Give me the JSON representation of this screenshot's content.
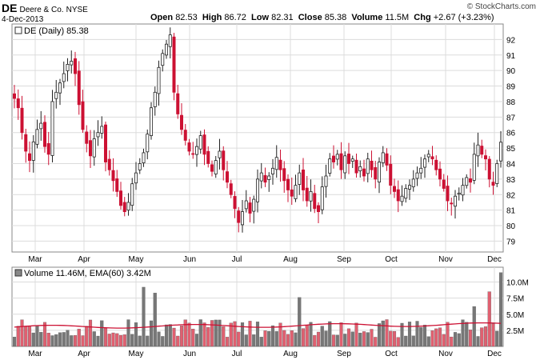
{
  "header": {
    "symbol": "DE",
    "company": "Deere & Co.",
    "exchange": "NYSE",
    "date": "4-Dec-2013",
    "brand": "© StockCharts.com",
    "open_label": "Open",
    "open": "82.53",
    "high_label": "High",
    "high": "86.72",
    "low_label": "Low",
    "low": "82.31",
    "close_label": "Close",
    "close": "85.38",
    "volume_label": "Volume",
    "volume": "11.5M",
    "chg_label": "Chg",
    "chg": "+2.67 (+3.23%)"
  },
  "chart_data": [
    {
      "type": "candlestick",
      "legend": "DE (Daily) 85.38",
      "ylim": [
        78.3,
        93.0
      ],
      "y_ticks": [
        79,
        80,
        81,
        82,
        83,
        84,
        85,
        86,
        87,
        88,
        89,
        90,
        91,
        92
      ],
      "x_ticks": [
        "Mar",
        "Apr",
        "May",
        "Jun",
        "Jul",
        "Aug",
        "Sep",
        "Oct",
        "Nov",
        "Dec"
      ],
      "grid": true,
      "up_color": "#222222",
      "down_color": "#cc1133",
      "close_series": [
        88.2,
        87.6,
        86.0,
        84.8,
        84.2,
        85.4,
        86.2,
        86.6,
        85.1,
        84.6,
        88.0,
        88.6,
        89.2,
        89.8,
        90.4,
        90.6,
        89.8,
        87.8,
        86.2,
        85.3,
        84.5,
        85.6,
        86.0,
        86.4,
        84.1,
        83.6,
        82.9,
        82.2,
        81.3,
        80.9,
        81.5,
        82.7,
        83.4,
        84.0,
        84.7,
        85.9,
        87.6,
        88.6,
        90.2,
        91.1,
        91.7,
        92.3,
        88.6,
        87.2,
        86.2,
        85.5,
        84.8,
        84.6,
        85.1,
        85.8,
        84.6,
        84.0,
        83.5,
        84.2,
        84.8,
        83.6,
        82.8,
        82.0,
        81.1,
        80.2,
        80.9,
        81.6,
        80.8,
        81.7,
        83.0,
        83.4,
        82.8,
        83.2,
        83.7,
        84.4,
        83.6,
        82.9,
        82.3,
        81.9,
        82.6,
        83.4,
        82.3,
        81.6,
        82.2,
        81.1,
        80.9,
        82.5,
        83.2,
        84.3,
        84.1,
        84.6,
        83.6,
        84.5,
        84.0,
        84.3,
        83.4,
        83.8,
        83.2,
        84.3,
        83.6,
        83.0,
        84.1,
        84.7,
        83.9,
        82.6,
        82.2,
        81.6,
        81.9,
        82.4,
        82.6,
        83.0,
        83.4,
        83.7,
        84.3,
        84.6,
        84.3,
        83.6,
        83.0,
        82.4,
        81.6,
        81.4,
        81.9,
        82.1,
        82.6,
        83.1,
        82.8,
        84.6,
        85.2,
        84.6,
        84.3,
        83.0,
        82.6,
        84.0,
        85.38
      ],
      "notes": "Daily DE candles from early Mar to 4-Dec 2013; overall high near 92.5 (mid-May), low near 78.6 (late Jun)."
    },
    {
      "type": "bar",
      "legend": "Volume 11.46M, EMA(60) 3.42M",
      "ylim": [
        0,
        12.3
      ],
      "unit": "M",
      "y_ticks": [
        "2.5M",
        "5.0M",
        "7.5M",
        "10.0M"
      ],
      "y_tick_values": [
        2.5,
        5.0,
        7.5,
        10.0
      ],
      "x_ticks": [
        "Mar",
        "Apr",
        "May",
        "Jun",
        "Jul",
        "Aug",
        "Sep",
        "Oct",
        "Nov",
        "Dec"
      ],
      "ema_color": "#cc1133",
      "ema_start": 3.0,
      "ema_end": 3.42,
      "last_volume": 11.46,
      "spikes": {
        "early_may": 9.2,
        "mid_may": 8.3,
        "early_aug": 7.6,
        "late_nov_1": 6.2,
        "late_nov_2": 8.5,
        "last": 11.46
      }
    }
  ]
}
